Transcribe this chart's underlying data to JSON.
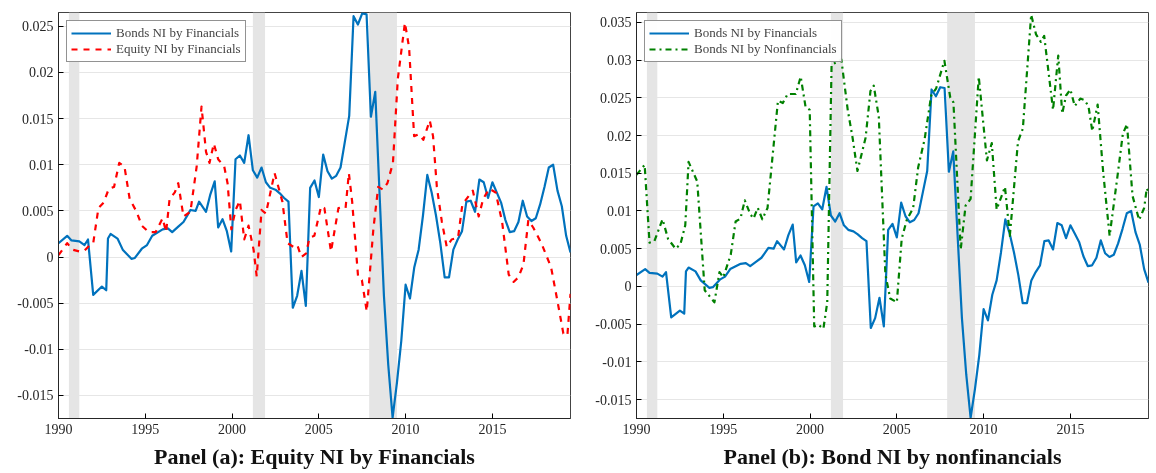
{
  "chart_data": [
    {
      "type": "line",
      "title": "Panel (a): Equity NI by Financials",
      "xlim": [
        1990,
        2019.5
      ],
      "ylim": [
        -0.0175,
        0.0265
      ],
      "xticks": [
        1990,
        1995,
        2000,
        2005,
        2010,
        2015
      ],
      "yticks": [
        -0.015,
        -0.01,
        -0.005,
        0,
        0.005,
        0.01,
        0.015,
        0.02,
        0.025
      ],
      "grid": "y",
      "legend": "top left",
      "bands": [
        {
          "axis": "x",
          "from": 1990.6,
          "to": 1991.2,
          "color": "#e5e5e5"
        },
        {
          "axis": "x",
          "from": 2001.2,
          "to": 2001.9,
          "color": "#e5e5e5"
        },
        {
          "axis": "x",
          "from": 2007.9,
          "to": 2009.5,
          "color": "#e5e5e5"
        }
      ],
      "series": [
        {
          "name": "Bonds NI by Financials",
          "color": "#0072bd",
          "line_style": "solid",
          "x": [
            1990.0,
            1990.5,
            1990.75,
            1991.2,
            1991.5,
            1991.7,
            1992.0,
            1992.5,
            1992.75,
            1992.85,
            1993.0,
            1993.4,
            1993.7,
            1994.2,
            1994.4,
            1994.8,
            1995.1,
            1995.4,
            1996.0,
            1996.3,
            1996.55,
            1996.9,
            1997.2,
            1997.45,
            1997.6,
            1997.9,
            1998.1,
            1998.5,
            1998.75,
            1999.0,
            1999.2,
            1999.45,
            1999.7,
            1999.95,
            2000.2,
            2000.45,
            2000.7,
            2000.95,
            2001.2,
            2001.45,
            2001.7,
            2001.95,
            2002.2,
            2002.5,
            2002.75,
            2003.0,
            2003.25,
            2003.5,
            2003.75,
            2004.0,
            2004.25,
            2004.5,
            2004.75,
            2005.0,
            2005.25,
            2005.5,
            2005.75,
            2006.0,
            2006.25,
            2006.5,
            2006.75,
            2007.0,
            2007.25,
            2007.5,
            2007.75,
            2008.0,
            2008.25,
            2008.5,
            2008.75,
            2009.0,
            2009.25,
            2009.5,
            2009.75,
            2010.0,
            2010.25,
            2010.5,
            2010.75,
            2011.0,
            2011.25,
            2011.5,
            2011.75,
            2012.0,
            2012.25,
            2012.5,
            2012.75,
            2013.0,
            2013.25,
            2013.5,
            2013.75,
            2014.0,
            2014.25,
            2014.5,
            2014.75,
            2015.0,
            2015.25,
            2015.5,
            2015.75,
            2016.0,
            2016.25,
            2016.5,
            2016.75,
            2017.0,
            2017.25,
            2017.5,
            2017.75,
            2018.0,
            2018.25,
            2018.5,
            2018.75,
            2019.0,
            2019.25,
            2019.5
          ],
          "values": [
            0.0015,
            0.0023,
            0.0018,
            0.0017,
            0.0013,
            0.0019,
            -0.0041,
            -0.0032,
            -0.0036,
            0.002,
            0.0025,
            0.002,
            0.0008,
            -0.0002,
            -0.0001,
            0.0009,
            0.0013,
            0.0023,
            0.003,
            0.0031,
            0.0027,
            0.0033,
            0.0038,
            0.0046,
            0.0051,
            0.005,
            0.006,
            0.0049,
            0.0068,
            0.0082,
            0.0032,
            0.0041,
            0.0028,
            0.0006,
            0.0106,
            0.011,
            0.0102,
            0.0132,
            0.0094,
            0.0086,
            0.0097,
            0.0081,
            0.0075,
            0.0073,
            0.0069,
            0.0064,
            0.006,
            -0.0055,
            -0.0042,
            -0.0015,
            -0.0053,
            0.0075,
            0.0083,
            0.0065,
            0.0111,
            0.0093,
            0.0085,
            0.0088,
            0.0097,
            0.0125,
            0.0153,
            0.0261,
            0.0252,
            0.0264,
            0.0263,
            0.0152,
            0.0179,
            0.0068,
            -0.0042,
            -0.0117,
            -0.0174,
            -0.0136,
            -0.0091,
            -0.003,
            -0.0045,
            -0.0011,
            0.0008,
            0.0045,
            0.0089,
            0.007,
            0.0045,
            0.0015,
            -0.0022,
            -0.0022,
            0.0008,
            0.0019,
            0.0028,
            0.006,
            0.0061,
            0.0049,
            0.0084,
            0.0081,
            0.0064,
            0.0081,
            0.007,
            0.0059,
            0.004,
            0.0027,
            0.0028,
            0.0038,
            0.0061,
            0.0044,
            0.0039,
            0.0042,
            0.0057,
            0.0076,
            0.0097,
            0.01,
            0.0072,
            0.0055,
            0.0023,
            0.0005
          ]
        },
        {
          "name": "Equity NI by Financials",
          "color": "#ff0000",
          "line_style": "dashed",
          "x": [
            1990.0,
            1990.5,
            1990.8,
            1991.2,
            1991.5,
            1991.8,
            1992.0,
            1992.3,
            1992.6,
            1992.9,
            1993.2,
            1993.5,
            1993.8,
            1994.1,
            1994.5,
            1994.8,
            1995.2,
            1995.6,
            1996.0,
            1996.2,
            1996.4,
            1996.7,
            1996.9,
            1997.2,
            1997.6,
            1997.96,
            1998.24,
            1998.5,
            1998.7,
            1998.95,
            1999.2,
            1999.55,
            1999.74,
            1999.96,
            2000.2,
            2000.45,
            2000.7,
            2000.95,
            2001.24,
            2001.42,
            2001.7,
            2001.95,
            2002.45,
            2002.9,
            2003.2,
            2003.53,
            2003.76,
            2003.99,
            2004.27,
            2004.46,
            2004.74,
            2005.13,
            2005.32,
            2005.7,
            2006.13,
            2006.32,
            2006.54,
            2006.73,
            2006.92,
            2007.26,
            2007.48,
            2007.76,
            2008.14,
            2008.42,
            2008.7,
            2008.95,
            2009.27,
            2009.55,
            2009.96,
            2010.2,
            2010.49,
            2010.77,
            2011.02,
            2011.39,
            2011.58,
            2011.8,
            2012.09,
            2012.37,
            2012.65,
            2013.02,
            2013.27,
            2013.87,
            2014.21,
            2014.47,
            2014.81,
            2015.19,
            2015.56,
            2015.94,
            2016.22,
            2016.5,
            2016.79,
            2017.07,
            2017.35,
            2017.82,
            2018.38,
            2018.76,
            2019.09,
            2019.32,
            2019.5
          ],
          "values": [
            0.0002,
            0.0015,
            0.0008,
            0.0006,
            0.0007,
            0.0013,
            0.0015,
            0.0053,
            0.0059,
            0.0074,
            0.0076,
            0.0102,
            0.0098,
            0.0063,
            0.0049,
            0.0034,
            0.0027,
            0.0027,
            0.0042,
            0.0027,
            0.0063,
            0.007,
            0.008,
            0.0044,
            0.0049,
            0.0098,
            0.0163,
            0.0114,
            0.0102,
            0.0123,
            0.0106,
            0.0098,
            0.008,
            0.003,
            0.0051,
            0.0061,
            0.0019,
            0.0034,
            0.0008,
            -0.0021,
            0.0051,
            0.0047,
            0.0091,
            0.006,
            0.0015,
            0.0011,
            0.0013,
            0.0,
            0.0004,
            0.0021,
            0.0023,
            0.0055,
            0.0053,
            0.0006,
            0.0053,
            0.0054,
            0.0053,
            0.0091,
            0.006,
            -0.0021,
            -0.0025,
            -0.0059,
            0.003,
            0.0076,
            0.0073,
            0.008,
            0.0102,
            0.0193,
            0.0254,
            0.0227,
            0.0131,
            0.0133,
            0.0127,
            0.0148,
            0.0131,
            0.0076,
            0.0038,
            0.0011,
            0.0019,
            0.0021,
            0.0057,
            0.0072,
            0.0044,
            0.0063,
            0.0074,
            0.007,
            0.0038,
            -0.0019,
            -0.0027,
            -0.0022,
            -0.0008,
            0.004,
            0.0032,
            0.0015,
            -0.0011,
            -0.0049,
            -0.0083,
            -0.0085,
            -0.004
          ]
        }
      ]
    },
    {
      "type": "line",
      "title": "Panel (b): Bond NI by nonfinancials",
      "xlim": [
        1990,
        2019.5
      ],
      "ylim": [
        -0.0175,
        0.0363
      ],
      "xticks": [
        1990,
        1995,
        2000,
        2005,
        2010,
        2015
      ],
      "yticks": [
        -0.015,
        -0.01,
        -0.005,
        0,
        0.005,
        0.01,
        0.015,
        0.02,
        0.025,
        0.03,
        0.035
      ],
      "grid": "y",
      "legend": "top left",
      "bands": [
        {
          "axis": "x",
          "from": 1990.6,
          "to": 1991.2,
          "color": "#e5e5e5"
        },
        {
          "axis": "x",
          "from": 2001.2,
          "to": 2001.9,
          "color": "#e5e5e5"
        },
        {
          "axis": "x",
          "from": 2007.9,
          "to": 2009.5,
          "color": "#e5e5e5"
        }
      ],
      "series": [
        {
          "name": "Bonds NI by Financials",
          "color": "#0072bd",
          "line_style": "solid",
          "x": [
            1990.0,
            1990.5,
            1990.75,
            1991.2,
            1991.5,
            1991.7,
            1992.0,
            1992.5,
            1992.75,
            1992.85,
            1993.0,
            1993.4,
            1993.7,
            1994.2,
            1994.4,
            1994.8,
            1995.1,
            1995.4,
            1996.0,
            1996.3,
            1996.55,
            1996.9,
            1997.2,
            1997.45,
            1997.6,
            1997.9,
            1998.1,
            1998.5,
            1998.75,
            1999.0,
            1999.2,
            1999.45,
            1999.7,
            1999.95,
            2000.2,
            2000.45,
            2000.7,
            2000.95,
            2001.2,
            2001.45,
            2001.7,
            2001.95,
            2002.2,
            2002.5,
            2002.75,
            2003.0,
            2003.25,
            2003.5,
            2003.75,
            2004.0,
            2004.25,
            2004.5,
            2004.75,
            2005.0,
            2005.25,
            2005.5,
            2005.75,
            2006.0,
            2006.25,
            2006.5,
            2006.75,
            2007.0,
            2007.25,
            2007.5,
            2007.75,
            2008.0,
            2008.25,
            2008.5,
            2008.75,
            2009.0,
            2009.25,
            2009.5,
            2009.75,
            2010.0,
            2010.25,
            2010.5,
            2010.75,
            2011.0,
            2011.25,
            2011.5,
            2011.75,
            2012.0,
            2012.25,
            2012.5,
            2012.75,
            2013.0,
            2013.25,
            2013.5,
            2013.75,
            2014.0,
            2014.25,
            2014.5,
            2014.75,
            2015.0,
            2015.25,
            2015.5,
            2015.75,
            2016.0,
            2016.25,
            2016.5,
            2016.75,
            2017.0,
            2017.25,
            2017.5,
            2017.75,
            2018.0,
            2018.25,
            2018.5,
            2018.75,
            2019.0,
            2019.25,
            2019.5
          ],
          "values": [
            0.0015,
            0.0023,
            0.0018,
            0.0017,
            0.0013,
            0.0019,
            -0.0041,
            -0.0032,
            -0.0036,
            0.002,
            0.0025,
            0.002,
            0.0008,
            -0.0002,
            -0.0001,
            0.0009,
            0.0013,
            0.0023,
            0.003,
            0.0031,
            0.0027,
            0.0033,
            0.0038,
            0.0046,
            0.0051,
            0.005,
            0.006,
            0.0049,
            0.0068,
            0.0082,
            0.0032,
            0.0041,
            0.0028,
            0.0006,
            0.0106,
            0.011,
            0.0102,
            0.0132,
            0.0094,
            0.0086,
            0.0097,
            0.0081,
            0.0075,
            0.0073,
            0.0069,
            0.0064,
            0.006,
            -0.0055,
            -0.0042,
            -0.0015,
            -0.0053,
            0.0075,
            0.0083,
            0.0065,
            0.0111,
            0.0093,
            0.0085,
            0.0088,
            0.0097,
            0.0125,
            0.0153,
            0.0261,
            0.0252,
            0.0264,
            0.0263,
            0.0152,
            0.0179,
            0.0068,
            -0.0042,
            -0.0117,
            -0.0174,
            -0.0136,
            -0.0091,
            -0.003,
            -0.0045,
            -0.0011,
            0.0008,
            0.0045,
            0.0089,
            0.007,
            0.0045,
            0.0015,
            -0.0022,
            -0.0022,
            0.0008,
            0.0019,
            0.0028,
            0.006,
            0.0061,
            0.0049,
            0.0084,
            0.0081,
            0.0064,
            0.0081,
            0.007,
            0.0059,
            0.004,
            0.0027,
            0.0028,
            0.0038,
            0.0061,
            0.0044,
            0.0039,
            0.0042,
            0.0057,
            0.0076,
            0.0097,
            0.01,
            0.0072,
            0.0055,
            0.0023,
            0.0005
          ]
        },
        {
          "name": "Bonds NI by Nonfinancials",
          "color": "#008000",
          "line_style": "dashdot",
          "x": [
            1990.0,
            1990.47,
            1990.75,
            1991.03,
            1991.5,
            1991.82,
            1992.25,
            1992.53,
            1992.81,
            1993.0,
            1993.5,
            1993.93,
            1994.49,
            1994.78,
            1995.0,
            1995.43,
            1995.71,
            1995.99,
            1996.24,
            1996.55,
            1996.74,
            1996.99,
            1997.25,
            1997.55,
            1998.15,
            1998.43,
            1998.71,
            1999.18,
            1999.46,
            1999.74,
            1999.98,
            2000.24,
            2000.49,
            2000.77,
            2000.99,
            2001.24,
            2001.52,
            2001.8,
            2002.17,
            2002.45,
            2002.73,
            2003.2,
            2003.48,
            2003.67,
            2003.96,
            2004.34,
            2004.62,
            2005.0,
            2005.28,
            2005.57,
            2005.94,
            2006.23,
            2006.6,
            2006.98,
            2007.26,
            2007.74,
            2008.08,
            2008.26,
            2008.68,
            2008.96,
            2009.25,
            2009.72,
            2010.19,
            2010.47,
            2010.75,
            2011.23,
            2011.51,
            2011.98,
            2012.26,
            2012.74,
            2013.02,
            2013.3,
            2013.49,
            2014.0,
            2014.3,
            2014.53,
            2014.75,
            2015.0,
            2015.25,
            2015.57,
            2015.81,
            2016.04,
            2016.26,
            2016.57,
            2016.89,
            2017.26,
            2017.74,
            2018.02,
            2018.26,
            2018.58,
            2018.96,
            2019.25,
            2019.4,
            2019.5
          ],
          "values": [
            0.0148,
            0.0161,
            0.0058,
            0.006,
            0.0089,
            0.0063,
            0.005,
            0.0056,
            0.0081,
            0.0165,
            0.0139,
            -0.0005,
            -0.0021,
            0.0019,
            0.0012,
            0.0042,
            0.0086,
            0.009,
            0.0114,
            0.0096,
            0.009,
            0.0104,
            0.0089,
            0.0104,
            0.0246,
            0.0243,
            0.0255,
            0.0255,
            0.0278,
            0.0238,
            0.0234,
            -0.0053,
            -0.0051,
            -0.0056,
            -0.0021,
            0.0294,
            0.0297,
            0.0301,
            0.0234,
            0.0197,
            0.0153,
            0.0197,
            0.0259,
            0.0266,
            0.0225,
            0.0016,
            -0.0016,
            -0.0021,
            0.0063,
            0.0088,
            0.0104,
            0.0158,
            0.0195,
            0.0253,
            0.0262,
            0.0299,
            0.025,
            0.0244,
            0.0049,
            0.0107,
            0.0116,
            0.0278,
            0.0167,
            0.019,
            0.0102,
            0.0132,
            0.0067,
            0.0192,
            0.0209,
            0.036,
            0.0334,
            0.0324,
            0.0332,
            0.0234,
            0.0306,
            0.0229,
            0.0253,
            0.0261,
            0.0239,
            0.0249,
            0.0247,
            0.0239,
            0.0206,
            0.0241,
            0.0151,
            0.0067,
            0.0151,
            0.0202,
            0.0215,
            0.012,
            0.0088,
            0.0104,
            0.013,
            0.0125
          ]
        }
      ]
    }
  ]
}
